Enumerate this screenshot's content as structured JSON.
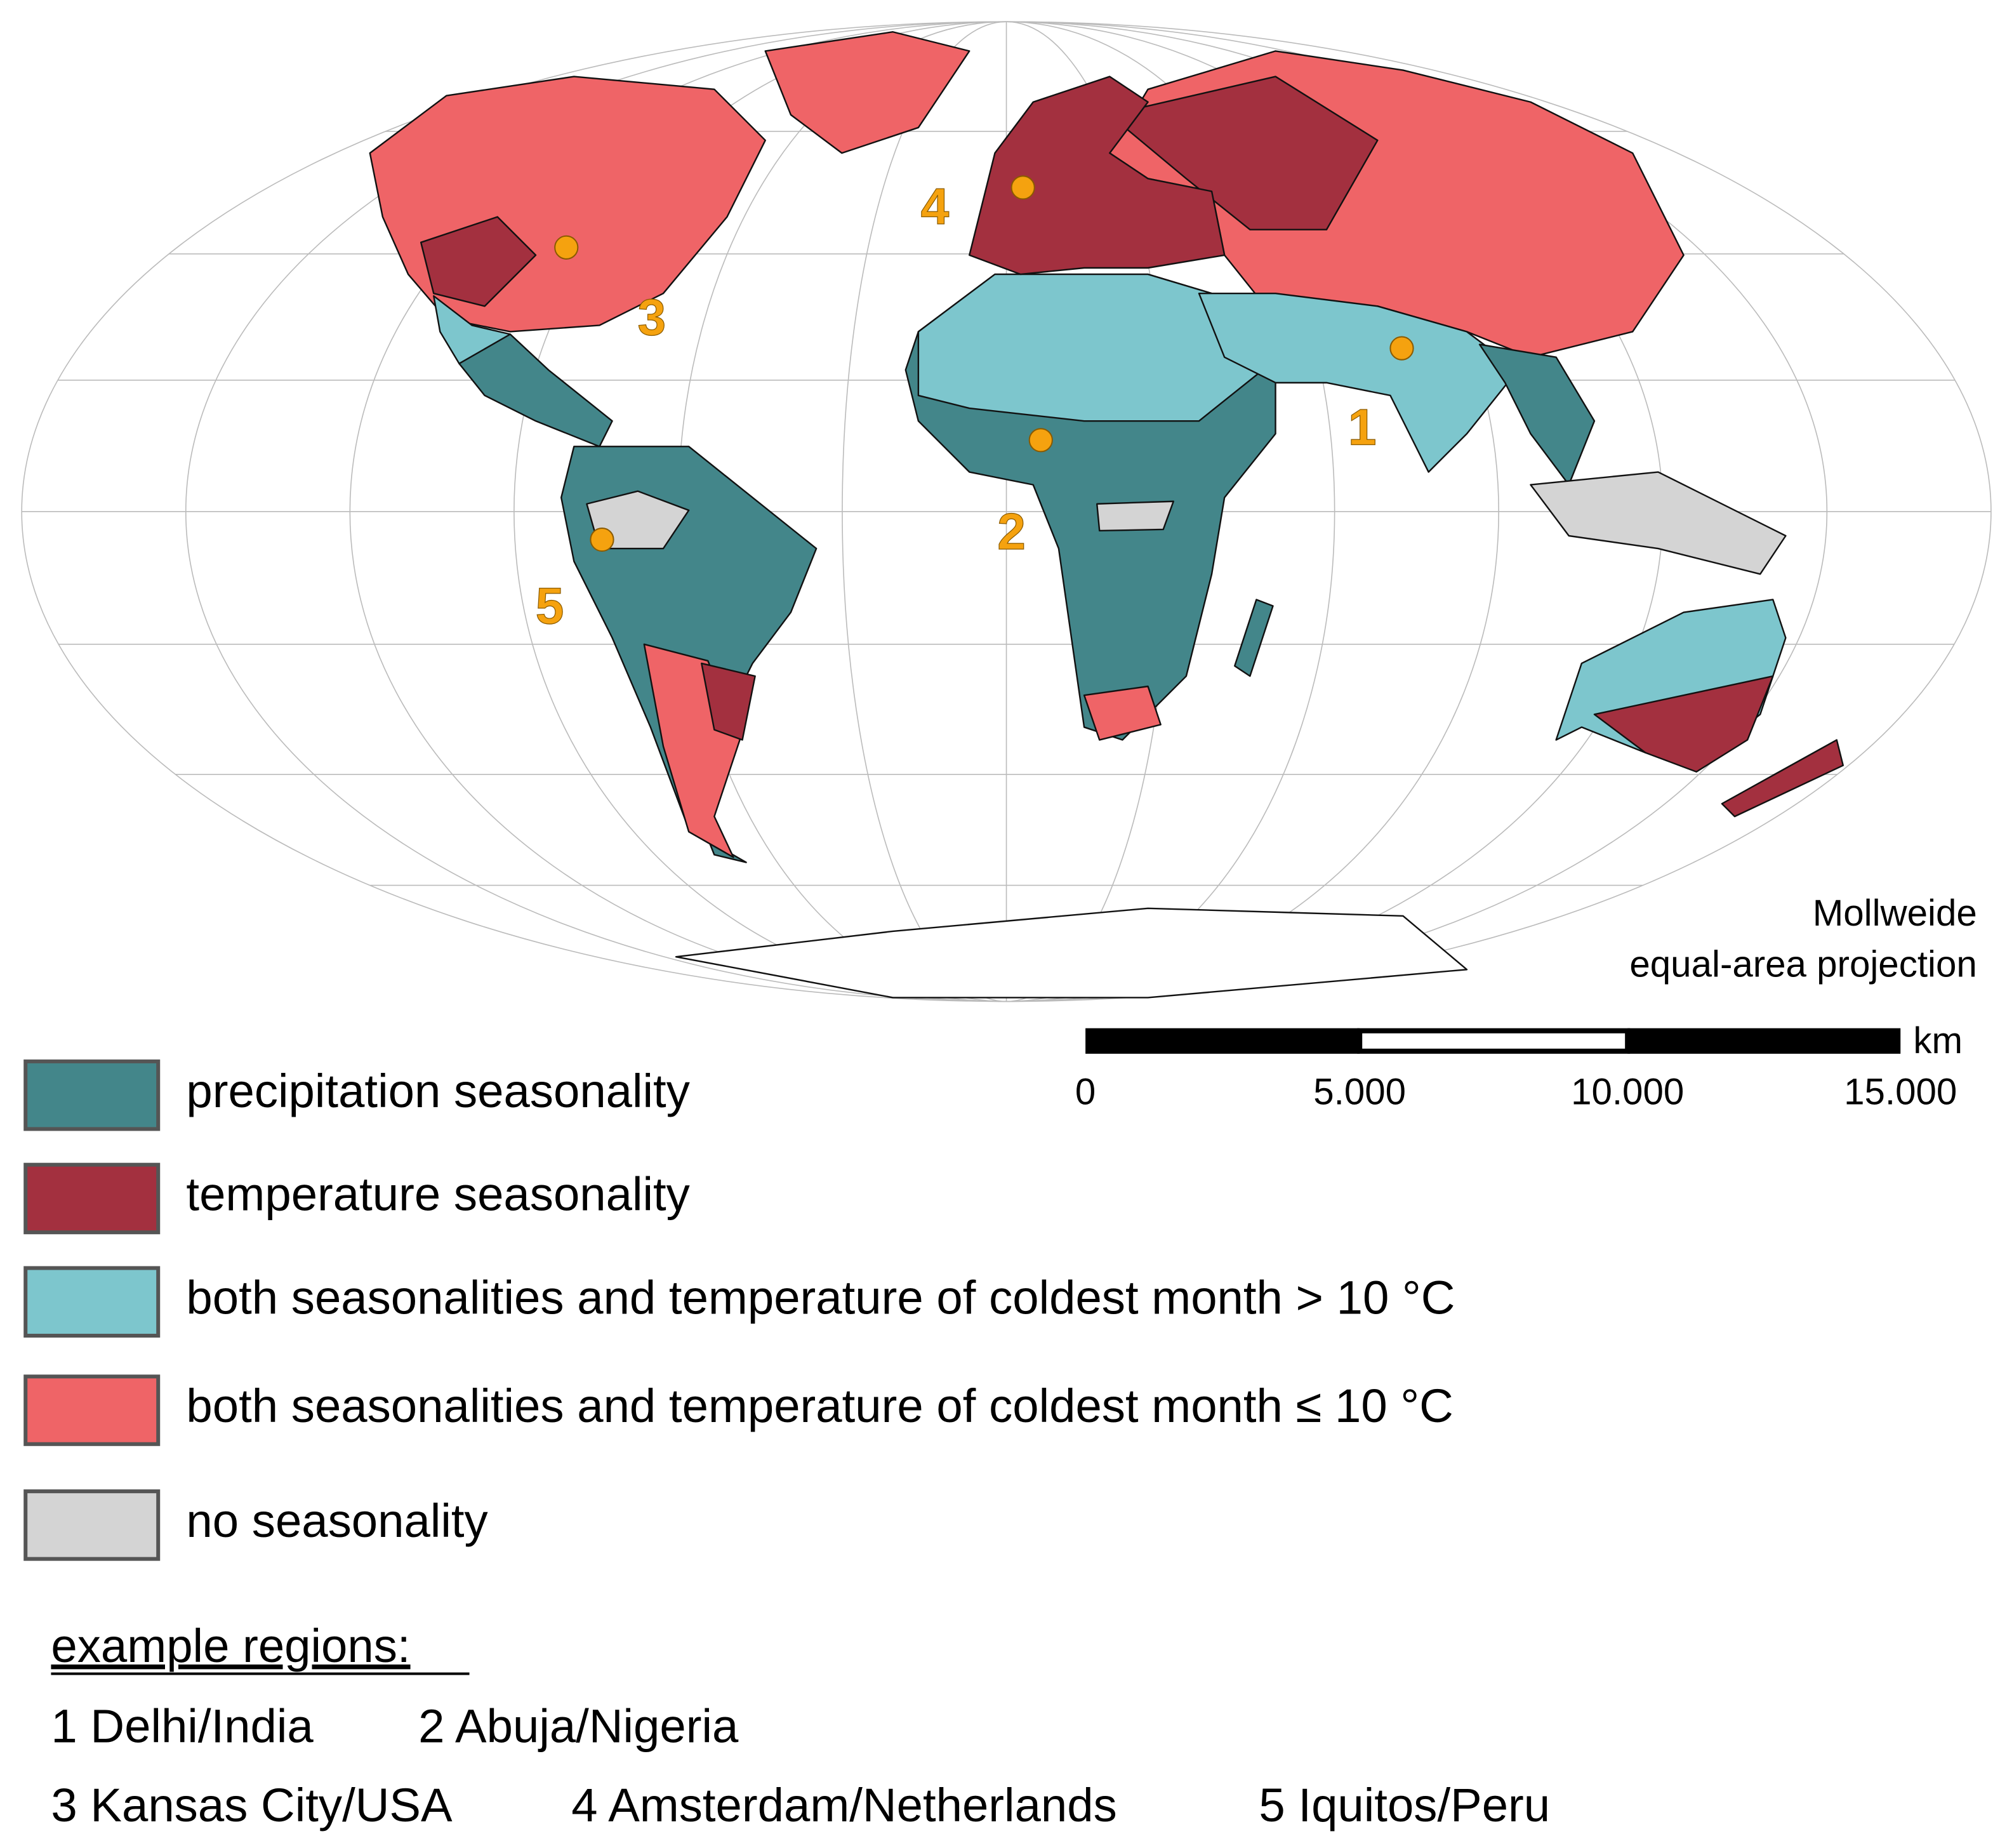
{
  "map": {
    "projection_note": [
      "Mollweide",
      "equal-area projection"
    ],
    "markers": [
      "1",
      "2",
      "3",
      "4",
      "5"
    ],
    "scale_bar": {
      "unit": "km",
      "ticks": [
        "0",
        "5.000",
        "10.000",
        "15.000"
      ]
    }
  },
  "legend": [
    {
      "label": "precipitation seasonality",
      "color": "#43868a"
    },
    {
      "label": "temperature seasonality",
      "color": "#a3303f"
    },
    {
      "label": "both seasonalities and temperature of coldest month > 10 °C",
      "color": "#7dc6cd"
    },
    {
      "label": "both seasonalities and temperature of coldest month ≤ 10 °C",
      "color": "#ef6467"
    },
    {
      "label": "no seasonality",
      "color": "#d4d4d4"
    }
  ],
  "example_regions": {
    "title": "example regions:",
    "items": [
      "1 Delhi/India",
      "2 Abuja/Nigeria",
      "3 Kansas City/USA",
      "4 Amsterdam/Netherlands",
      "5 Iquitos/Peru"
    ]
  }
}
